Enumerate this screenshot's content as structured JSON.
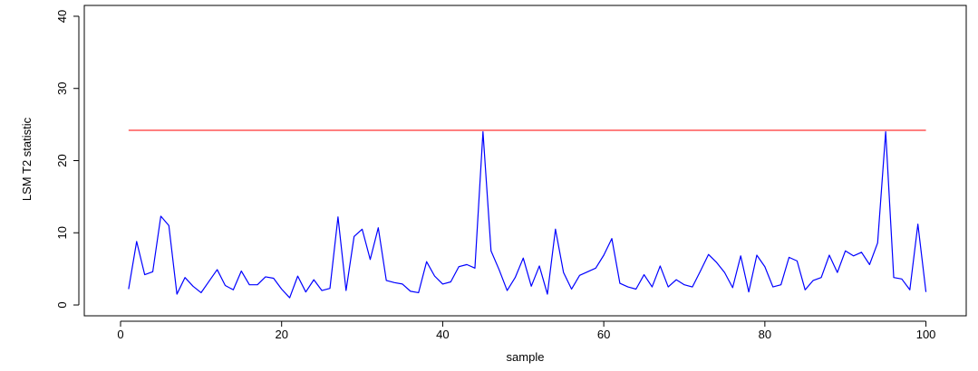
{
  "chart_data": {
    "type": "line",
    "title": "",
    "xlabel": "sample",
    "ylabel": "LSM T2 statistic",
    "xlim": [
      -4.5,
      105
    ],
    "ylim": [
      -1.5,
      41.5
    ],
    "xticks": [
      0,
      20,
      40,
      60,
      80,
      100
    ],
    "yticks": [
      0,
      10,
      20,
      30,
      40
    ],
    "grid": false,
    "legend": "none",
    "series": [
      {
        "color": "#0000ff",
        "x": [
          1,
          2,
          3,
          4,
          5,
          6,
          7,
          8,
          9,
          10,
          11,
          12,
          13,
          14,
          15,
          16,
          17,
          18,
          19,
          20,
          21,
          22,
          23,
          24,
          25,
          26,
          27,
          28,
          29,
          30,
          31,
          32,
          33,
          34,
          35,
          36,
          37,
          38,
          39,
          40,
          41,
          42,
          43,
          44,
          45,
          46,
          47,
          48,
          49,
          50,
          51,
          52,
          53,
          54,
          55,
          56,
          57,
          58,
          59,
          60,
          61,
          62,
          63,
          64,
          65,
          66,
          67,
          68,
          69,
          70,
          71,
          72,
          73,
          74,
          75,
          76,
          77,
          78,
          79,
          80,
          81,
          82,
          83,
          84,
          85,
          86,
          87,
          88,
          89,
          90,
          91,
          92,
          93,
          94,
          95,
          96,
          97,
          98,
          99,
          100
        ],
        "values": [
          2.2,
          8.8,
          4.2,
          4.6,
          12.3,
          11.0,
          1.5,
          3.8,
          2.6,
          1.7,
          3.3,
          4.9,
          2.7,
          2.1,
          4.7,
          2.8,
          2.8,
          3.9,
          3.7,
          2.2,
          1.0,
          4.0,
          1.8,
          3.5,
          2.0,
          2.3,
          12.2,
          2.0,
          9.5,
          10.5,
          6.3,
          10.7,
          3.4,
          3.1,
          2.9,
          1.9,
          1.7,
          6.0,
          4.0,
          2.9,
          3.2,
          5.3,
          5.6,
          5.1,
          24.0,
          7.5,
          4.9,
          2.0,
          3.8,
          6.5,
          2.6,
          5.4,
          1.5,
          10.5,
          4.5,
          2.2,
          4.1,
          4.6,
          5.1,
          6.9,
          9.2,
          3.0,
          2.5,
          2.2,
          4.2,
          2.5,
          5.4,
          2.5,
          3.5,
          2.8,
          2.5,
          4.7,
          7.0,
          5.9,
          4.5,
          2.4,
          6.8,
          1.8,
          6.9,
          5.3,
          2.5,
          2.8,
          6.6,
          6.1,
          2.1,
          3.4,
          3.8,
          6.9,
          4.5,
          7.5,
          6.8,
          7.3,
          5.6,
          8.6,
          24.0,
          3.8,
          3.6,
          2.1,
          11.2,
          1.8
        ]
      }
    ],
    "threshold": {
      "y": 24.2,
      "x_from": 1,
      "x_to": 100,
      "color": "#ff0000"
    }
  }
}
